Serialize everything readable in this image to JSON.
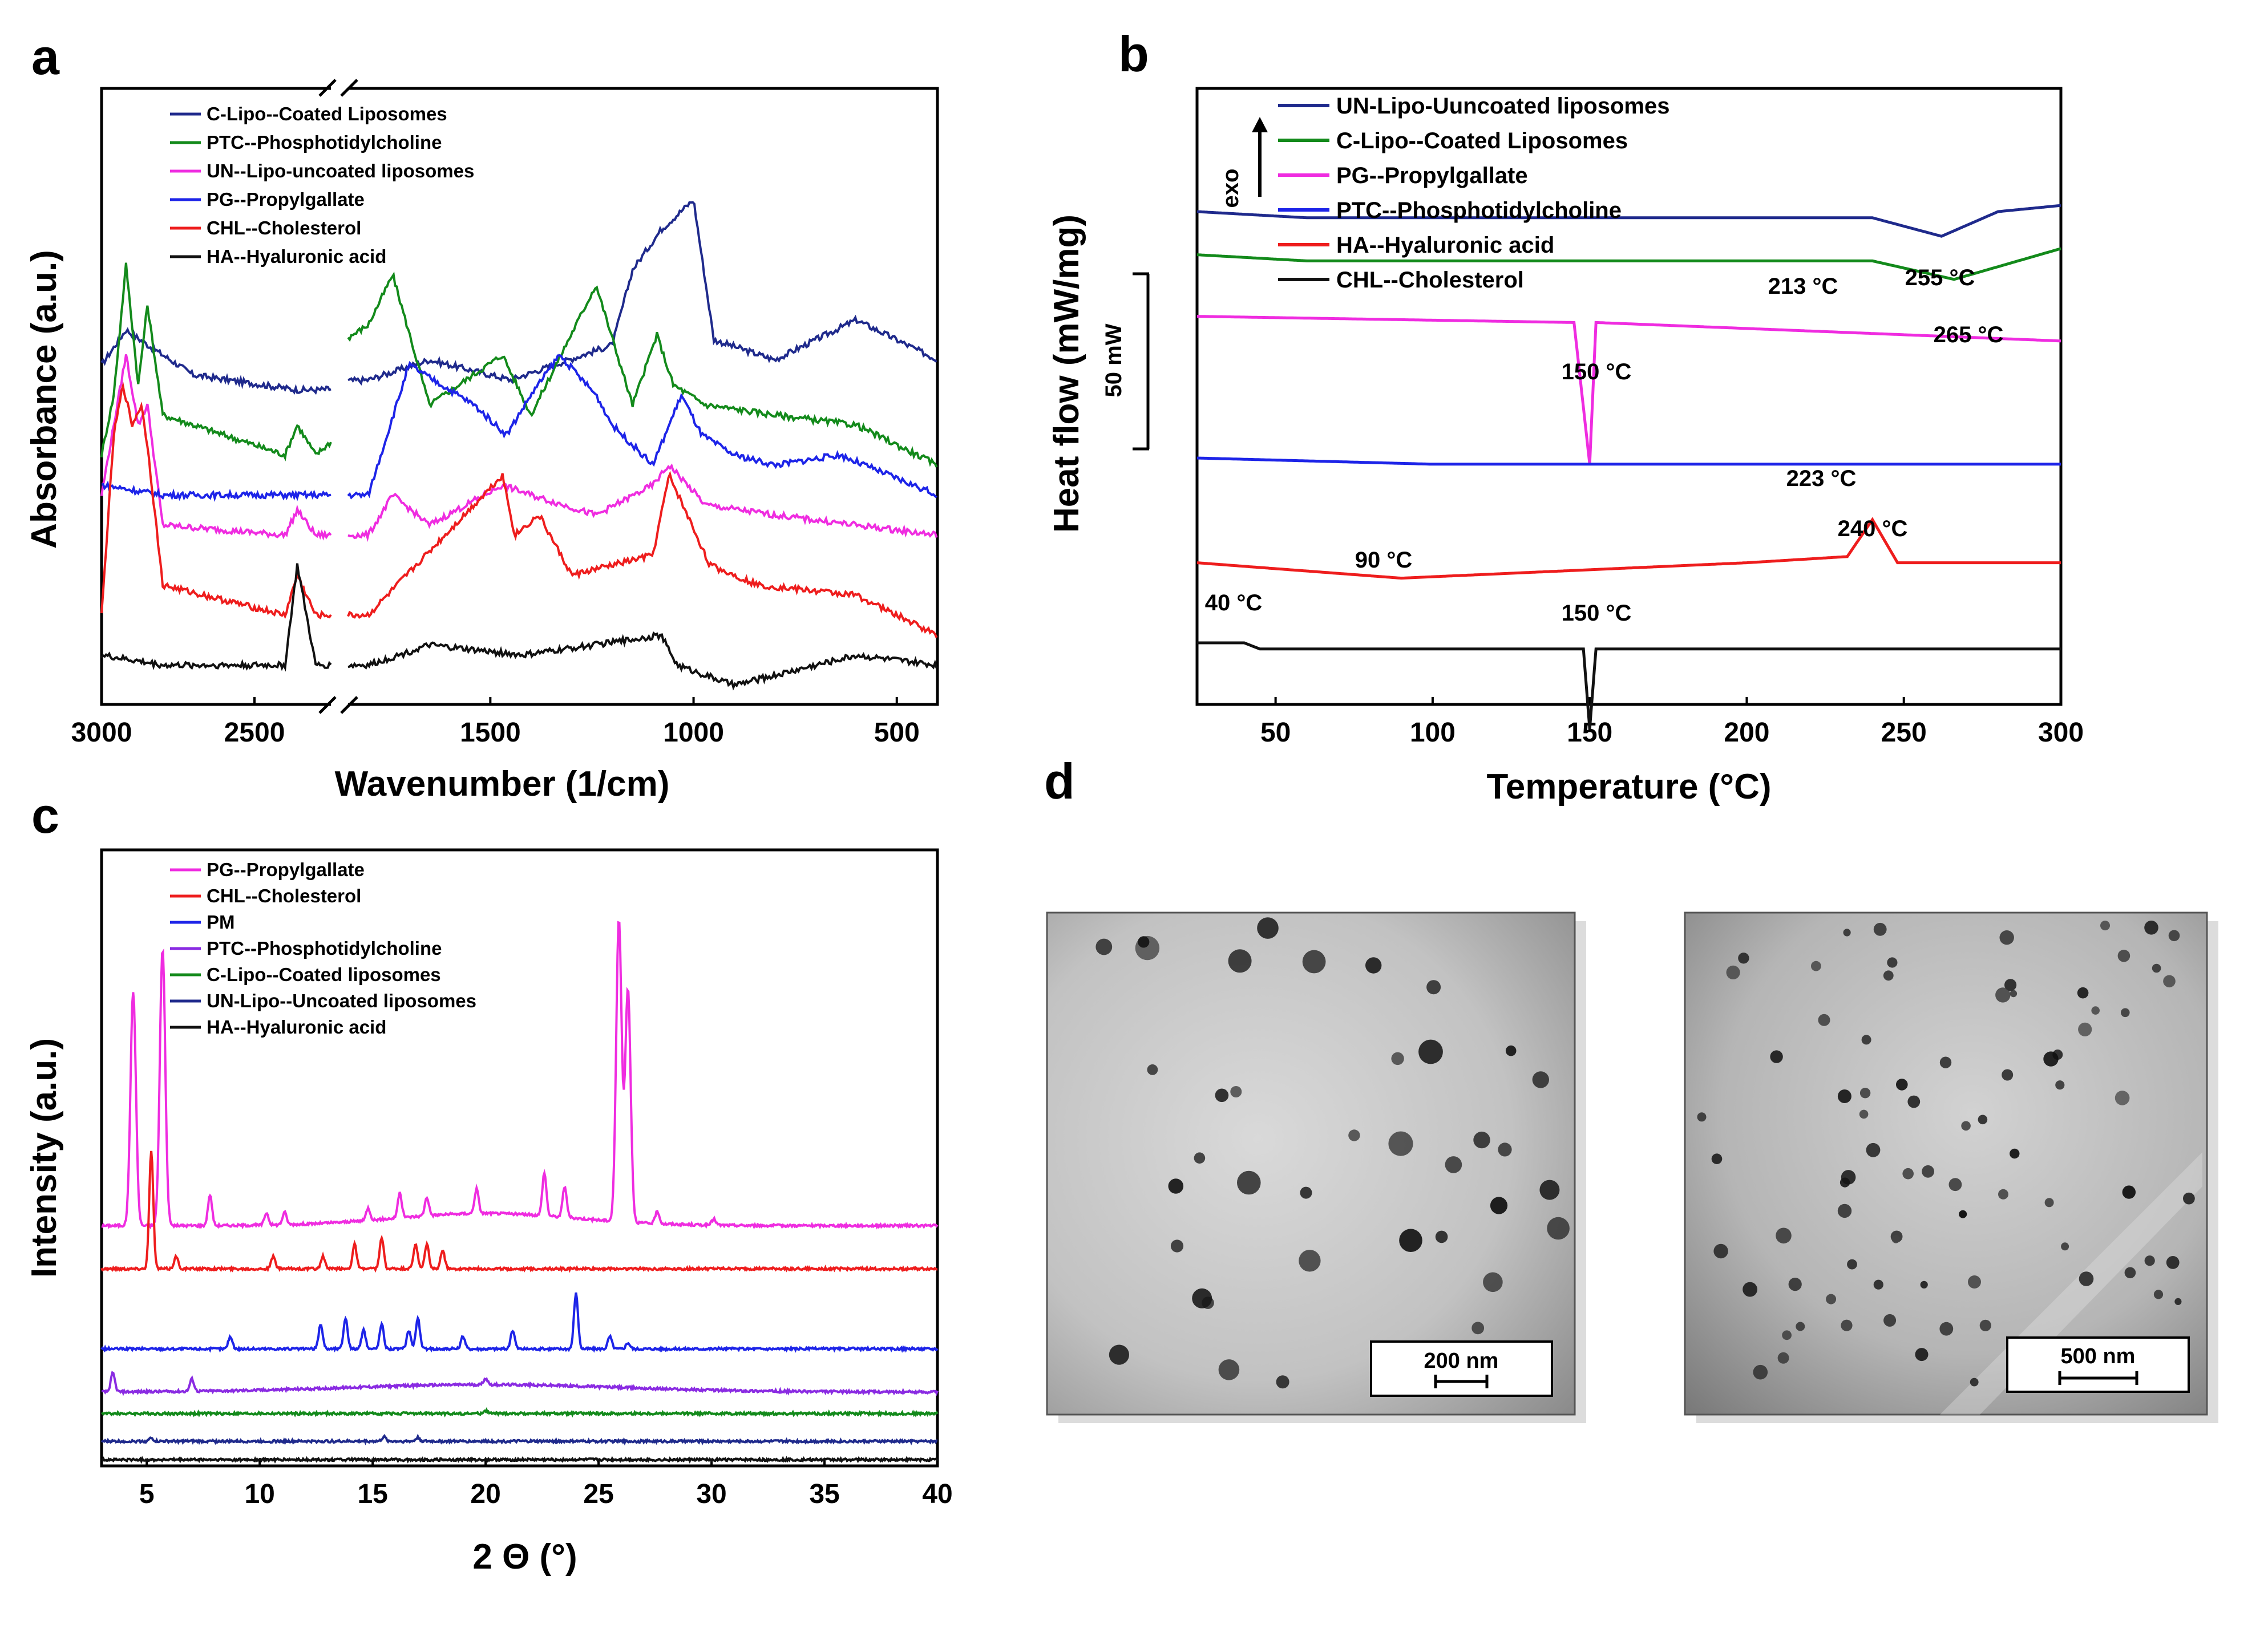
{
  "chart_data": [
    {
      "panel": "a",
      "type": "line",
      "xlabel": "Wavenumber (1/cm)",
      "ylabel": "Absorbance (a.u.)",
      "xlim": [
        3000,
        400
      ],
      "x_break": [
        2250,
        1850
      ],
      "xticks": [
        "3000",
        "2500",
        "1500",
        "1000",
        "500"
      ],
      "legend": [
        "C-Lipo--Coated Liposomes",
        "PTC--Phosphotidylcholine",
        "UN--Lipo-uncoated liposomes",
        "PG--Propylgallate",
        "CHL--Cholesterol",
        "HA--Hyaluronic acid"
      ],
      "series": [
        {
          "name": "C-Lipo--Coated Liposomes",
          "color": "#1f2a8c",
          "offset": 0.55,
          "amp": 0.04,
          "points": [
            [
              3000,
              0.05
            ],
            [
              2920,
              0.12
            ],
            [
              2850,
              0.09
            ],
            [
              2700,
              0.03
            ],
            [
              2360,
              0.0
            ],
            [
              2300,
              0.0
            ],
            [
              1800,
              0.02
            ],
            [
              1650,
              0.06
            ],
            [
              1450,
              0.02
            ],
            [
              1200,
              0.09
            ],
            [
              1150,
              0.24
            ],
            [
              1080,
              0.32
            ],
            [
              1000,
              0.38
            ],
            [
              950,
              0.1
            ],
            [
              800,
              0.06
            ],
            [
              600,
              0.14
            ],
            [
              400,
              0.06
            ]
          ],
          "peaks": []
        },
        {
          "name": "PTC--Phosphotidylcholine",
          "color": "#138a1b",
          "offset": 0.42,
          "amp": 0.04,
          "points": [
            [
              3000,
              0.0
            ],
            [
              2960,
              0.12
            ],
            [
              2920,
              0.38
            ],
            [
              2880,
              0.14
            ],
            [
              2850,
              0.3
            ],
            [
              2800,
              0.08
            ],
            [
              2400,
              0.0
            ],
            [
              2360,
              0.06
            ],
            [
              2300,
              0.0
            ],
            [
              1800,
              0.26
            ],
            [
              1740,
              0.36
            ],
            [
              1650,
              0.1
            ],
            [
              1470,
              0.2
            ],
            [
              1400,
              0.08
            ],
            [
              1240,
              0.34
            ],
            [
              1150,
              0.1
            ],
            [
              1090,
              0.24
            ],
            [
              1050,
              0.14
            ],
            [
              970,
              0.1
            ],
            [
              800,
              0.08
            ],
            [
              600,
              0.06
            ],
            [
              400,
              -0.02
            ]
          ],
          "peaks": []
        },
        {
          "name": "UN--Lipo-uncoated liposomes",
          "color": "#ef2ce0",
          "offset": 0.26,
          "amp": 0.04,
          "points": [
            [
              3000,
              0.08
            ],
            [
              2960,
              0.22
            ],
            [
              2920,
              0.36
            ],
            [
              2880,
              0.22
            ],
            [
              2850,
              0.26
            ],
            [
              2800,
              0.02
            ],
            [
              2400,
              0.0
            ],
            [
              2360,
              0.05
            ],
            [
              2300,
              0.0
            ],
            [
              1800,
              0.0
            ],
            [
              1740,
              0.08
            ],
            [
              1650,
              0.02
            ],
            [
              1470,
              0.1
            ],
            [
              1400,
              0.08
            ],
            [
              1240,
              0.04
            ],
            [
              1100,
              0.1
            ],
            [
              1060,
              0.14
            ],
            [
              970,
              0.06
            ],
            [
              800,
              0.04
            ],
            [
              400,
              0.0
            ]
          ],
          "peaks": []
        },
        {
          "name": "PG--Propylgallate",
          "color": "#1d24e8",
          "offset": 0.34,
          "amp": 0.04,
          "points": [
            [
              3000,
              0.02
            ],
            [
              2800,
              0.0
            ],
            [
              2300,
              0.0
            ],
            [
              1800,
              0.0
            ],
            [
              1700,
              0.26
            ],
            [
              1620,
              0.22
            ],
            [
              1540,
              0.18
            ],
            [
              1460,
              0.12
            ],
            [
              1400,
              0.2
            ],
            [
              1330,
              0.28
            ],
            [
              1240,
              0.2
            ],
            [
              1200,
              0.14
            ],
            [
              1100,
              0.06
            ],
            [
              1030,
              0.2
            ],
            [
              980,
              0.12
            ],
            [
              900,
              0.08
            ],
            [
              800,
              0.06
            ],
            [
              640,
              0.08
            ],
            [
              400,
              0.0
            ]
          ],
          "peaks": []
        },
        {
          "name": "CHL--Cholesterol",
          "color": "#ee1d1d",
          "offset": 0.1,
          "amp": 0.04,
          "points": [
            [
              3000,
              0.0
            ],
            [
              2960,
              0.36
            ],
            [
              2930,
              0.46
            ],
            [
              2900,
              0.38
            ],
            [
              2870,
              0.42
            ],
            [
              2850,
              0.34
            ],
            [
              2800,
              0.06
            ],
            [
              2400,
              0.0
            ],
            [
              2360,
              0.08
            ],
            [
              2300,
              0.0
            ],
            [
              1800,
              0.0
            ],
            [
              1470,
              0.28
            ],
            [
              1440,
              0.16
            ],
            [
              1380,
              0.2
            ],
            [
              1300,
              0.08
            ],
            [
              1100,
              0.12
            ],
            [
              1060,
              0.28
            ],
            [
              960,
              0.1
            ],
            [
              840,
              0.06
            ],
            [
              600,
              0.04
            ],
            [
              400,
              -0.04
            ]
          ],
          "peaks": []
        },
        {
          "name": "HA--Hyaluronic acid",
          "color": "#111111",
          "offset": 0.0,
          "amp": 0.04,
          "points": [
            [
              3000,
              0.02
            ],
            [
              2800,
              0.0
            ],
            [
              2400,
              0.0
            ],
            [
              2360,
              0.2
            ],
            [
              2300,
              0.0
            ],
            [
              1800,
              0.0
            ],
            [
              1650,
              0.04
            ],
            [
              1420,
              0.02
            ],
            [
              1080,
              0.06
            ],
            [
              1040,
              0.0
            ],
            [
              900,
              -0.04
            ],
            [
              600,
              0.02
            ],
            [
              400,
              0.0
            ]
          ],
          "peaks": []
        }
      ]
    },
    {
      "panel": "b",
      "type": "line",
      "xlabel": "Temperature (°C)",
      "ylabel": "Heat flow (mW/mg)",
      "xlim": [
        25,
        300
      ],
      "xticks": [
        "50",
        "100",
        "150",
        "200",
        "250",
        "300"
      ],
      "exo_label": "exo",
      "scale_bar": "50 mW",
      "legend": [
        "UN-Lipo-Uuncoated liposomes",
        "C-Lipo--Coated Liposomes",
        "PG--Propylgallate",
        "PTC--Phosphotidylcholine",
        "HA--Hyaluronic acid",
        "CHL--Cholesterol"
      ],
      "annotations": [
        "213 °C",
        "255 °C",
        "265 °C",
        "150 °C",
        "223 °C",
        "240 °C",
        "90 °C",
        "40 °C",
        "150 °C"
      ],
      "series": [
        {
          "name": "UN-Lipo-Uuncoated liposomes",
          "color": "#1f2a8c",
          "offset": 0.79,
          "points": [
            [
              25,
              0.01
            ],
            [
              60,
              0.0
            ],
            [
              200,
              0.0
            ],
            [
              240,
              0.0
            ],
            [
              262,
              -0.03
            ],
            [
              280,
              0.01
            ],
            [
              300,
              0.02
            ]
          ],
          "peaks": []
        },
        {
          "name": "C-Lipo--Coated Liposomes",
          "color": "#138a1b",
          "offset": 0.72,
          "points": [
            [
              25,
              0.01
            ],
            [
              60,
              0.0
            ],
            [
              240,
              0.0
            ],
            [
              266,
              -0.03
            ],
            [
              300,
              0.02
            ]
          ],
          "peaks": []
        },
        {
          "name": "PG--Propylgallate",
          "color": "#ef2ce0",
          "offset": 0.63,
          "points": [
            [
              25,
              0.0
            ],
            [
              145,
              -0.01
            ],
            [
              150,
              -0.24
            ],
            [
              152,
              -0.01
            ],
            [
              300,
              -0.04
            ]
          ],
          "peaks": []
        },
        {
          "name": "PTC--Phosphotidylcholine",
          "color": "#1d24e8",
          "offset": 0.39,
          "points": [
            [
              25,
              0.01
            ],
            [
              100,
              0.0
            ],
            [
              300,
              0.0
            ]
          ],
          "peaks": []
        },
        {
          "name": "HA--Hyaluronic acid",
          "color": "#ee1d1d",
          "offset": 0.23,
          "points": [
            [
              25,
              0.0
            ],
            [
              90,
              -0.025
            ],
            [
              200,
              0.0
            ],
            [
              232,
              0.01
            ],
            [
              240,
              0.07
            ],
            [
              248,
              0.0
            ],
            [
              300,
              0.0
            ]
          ],
          "peaks": []
        },
        {
          "name": "CHL--Cholesterol",
          "color": "#111111",
          "offset": 0.1,
          "points": [
            [
              25,
              0.0
            ],
            [
              40,
              0.0
            ],
            [
              45,
              -0.01
            ],
            [
              148,
              -0.01
            ],
            [
              150,
              -0.14
            ],
            [
              152,
              -0.01
            ],
            [
              300,
              -0.01
            ]
          ],
          "peaks": []
        }
      ]
    },
    {
      "panel": "c",
      "type": "line",
      "xlabel": "2 Θ (°)",
      "ylabel": "Intensity (a.u.)",
      "xlim": [
        3,
        40
      ],
      "xticks": [
        "5",
        "10",
        "15",
        "20",
        "25",
        "30",
        "35",
        "40"
      ],
      "legend": [
        "PG--Propylgallate",
        "CHL--Cholesterol",
        "PM",
        "PTC--Phosphotidylcholine",
        "C-Lipo--Coated liposomes",
        "UN-Lipo--Uncoated liposomes",
        "HA--Hyaluronic acid"
      ],
      "series": [
        {
          "name": "PG--Propylgallate",
          "color": "#ef2ce0",
          "offset": 0.39,
          "peaks": [
            [
              4.4,
              0.38
            ],
            [
              5.7,
              0.45
            ],
            [
              7.8,
              0.05
            ],
            [
              10.3,
              0.02
            ],
            [
              11.1,
              0.02
            ],
            [
              14.8,
              0.02
            ],
            [
              16.2,
              0.04
            ],
            [
              17.4,
              0.03
            ],
            [
              19.6,
              0.04
            ],
            [
              22.6,
              0.07
            ],
            [
              23.5,
              0.05
            ],
            [
              25.9,
              0.49
            ],
            [
              26.3,
              0.38
            ],
            [
              27.6,
              0.02
            ],
            [
              30.1,
              0.01
            ]
          ]
        },
        {
          "name": "CHL--Cholesterol",
          "color": "#ee1d1d",
          "offset": 0.32,
          "peaks": [
            [
              5.2,
              0.19
            ],
            [
              6.3,
              0.02
            ],
            [
              10.6,
              0.02
            ],
            [
              12.8,
              0.02
            ],
            [
              14.2,
              0.04
            ],
            [
              15.4,
              0.05
            ],
            [
              16.9,
              0.04
            ],
            [
              17.4,
              0.04
            ],
            [
              18.1,
              0.03
            ]
          ]
        },
        {
          "name": "PM",
          "color": "#1d24e8",
          "offset": 0.19,
          "peaks": [
            [
              8.7,
              0.02
            ],
            [
              12.7,
              0.04
            ],
            [
              13.8,
              0.05
            ],
            [
              14.6,
              0.03
            ],
            [
              15.4,
              0.04
            ],
            [
              16.6,
              0.03
            ],
            [
              17.0,
              0.05
            ],
            [
              19.0,
              0.02
            ],
            [
              21.2,
              0.03
            ],
            [
              24.0,
              0.09
            ],
            [
              25.5,
              0.02
            ],
            [
              26.3,
              0.01
            ]
          ]
        },
        {
          "name": "PTC--Phosphotidylcholine",
          "color": "#8a2be2",
          "offset": 0.12,
          "peaks": [
            [
              3.5,
              0.03
            ],
            [
              7.0,
              0.02
            ],
            [
              20.0,
              0.01
            ]
          ]
        },
        {
          "name": "C-Lipo--Coated liposomes",
          "color": "#138a1b",
          "offset": 0.085,
          "peaks": [
            [
              20.0,
              0.005
            ]
          ]
        },
        {
          "name": "UN-Lipo--Uncoated liposomes",
          "color": "#1f2a8c",
          "offset": 0.04,
          "peaks": [
            [
              5.2,
              0.005
            ],
            [
              15.5,
              0.007
            ],
            [
              17.0,
              0.006
            ]
          ]
        },
        {
          "name": "HA--Hyaluronic acid",
          "color": "#111111",
          "offset": 0.01,
          "peaks": []
        }
      ]
    }
  ],
  "panel_labels": {
    "a": "a",
    "b": "b",
    "c": "c",
    "d": "d"
  },
  "tem": {
    "left_scale": "200 nm",
    "right_scale": "500 nm"
  }
}
